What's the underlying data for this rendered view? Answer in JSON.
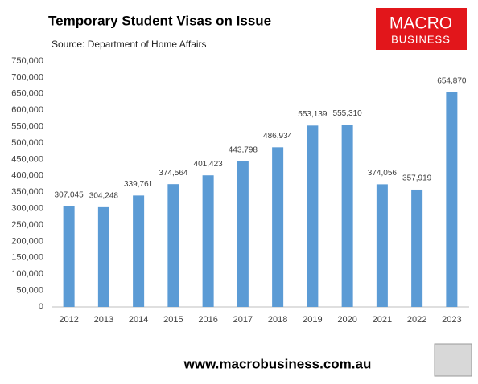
{
  "chart_data": {
    "type": "bar",
    "title": "Temporary Student Visas on Issue",
    "subtitle": "Source: Department of Home Affairs",
    "logo": {
      "line1": "MACRO",
      "line2": "BUSINESS"
    },
    "footer": "www.macrobusiness.com.au",
    "categories": [
      "2012",
      "2013",
      "2014",
      "2015",
      "2016",
      "2017",
      "2018",
      "2019",
      "2020",
      "2021",
      "2022",
      "2023"
    ],
    "values": [
      307045,
      304248,
      339761,
      374564,
      401423,
      443798,
      486934,
      553139,
      555310,
      374056,
      357919,
      654870
    ],
    "value_labels": [
      "307,045",
      "304,248",
      "339,761",
      "374,564",
      "401,423",
      "443,798",
      "486,934",
      "553,139",
      "555,310",
      "374,056",
      "357,919",
      "654,870"
    ],
    "color": "#5b9bd5",
    "ylim": [
      0,
      750000
    ],
    "yticks": [
      0,
      {
        "value": 50000,
        "label": "50,000"
      },
      {
        "value": 100000,
        "label": "100,000"
      },
      {
        "value": 150000,
        "label": "150,000"
      },
      {
        "value": 200000,
        "label": "200,000"
      },
      {
        "value": 250000,
        "label": "250,000"
      },
      {
        "value": 300000,
        "label": "300,000"
      },
      {
        "value": 350000,
        "label": "350,000"
      },
      {
        "value": 400000,
        "label": "400,000"
      },
      {
        "value": 450000,
        "label": "450,000"
      },
      {
        "value": 500000,
        "label": "500,000"
      },
      {
        "value": 550000,
        "label": "550,000"
      },
      {
        "value": 600000,
        "label": "600,000"
      },
      {
        "value": 650000,
        "label": "650,000"
      },
      {
        "value": 700000,
        "label": "700,000"
      },
      {
        "value": 750000,
        "label": "750,000"
      }
    ],
    "grid": false
  }
}
